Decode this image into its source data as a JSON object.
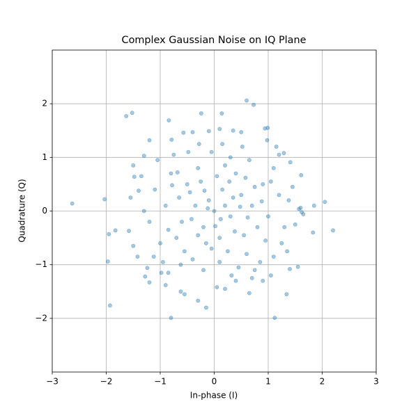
{
  "chart_data": {
    "type": "scatter",
    "title": "Complex Gaussian Noise on IQ Plane",
    "x_label": "In-phase (I)",
    "y_label": "Quadrature (Q)",
    "color": "#1f77b4",
    "grid": true,
    "xlim": [
      -3,
      3
    ],
    "ylim": [
      -3,
      3
    ],
    "xticks": [
      {
        "value": -3,
        "label": "−3"
      },
      {
        "value": -2,
        "label": "−2"
      },
      {
        "value": -1,
        "label": "−1"
      },
      0,
      1,
      2,
      3
    ],
    "yticks": [
      {
        "value": -2,
        "label": "−2"
      },
      {
        "value": -1,
        "label": "−1"
      },
      0,
      1,
      2
    ],
    "x": [
      -2.63,
      -2.03,
      -1.95,
      -1.97,
      -1.93,
      -1.83,
      -1.63,
      -1.52,
      2.2,
      2.05,
      1.85,
      1.83,
      1.12,
      -0.8,
      0.6,
      0.73,
      0.14,
      -0.24,
      -0.84,
      1.61,
      1.55,
      1.34,
      1.4,
      1.6,
      1.62,
      1.57,
      1.65,
      1.5,
      1.45,
      1.41,
      1.29,
      1.2,
      0.99,
      0.94,
      0.98,
      0.5,
      0.35,
      0.1,
      -0.1,
      -0.4,
      -0.57,
      -0.79,
      -1.2,
      -1.3,
      -1.5,
      -1.48,
      -1.55,
      -1.4,
      -1.58,
      -1.5,
      -1.42,
      -1.28,
      -1.2,
      -1.24,
      -0.98,
      -0.9,
      -0.62,
      -0.55,
      -0.3,
      -0.15,
      0.05,
      0.2,
      0.4,
      0.65,
      0.7,
      0.9,
      1.05,
      1.1,
      1.25,
      1.3,
      0.2,
      0.3,
      -0.1,
      -0.2,
      0.1,
      0.5,
      -0.5,
      0.4,
      -0.7,
      0.8,
      -0.3,
      0.6,
      -0.9,
      0.9,
      -0.4,
      0.0,
      0.15,
      -0.35,
      0.25,
      -0.6,
      0.7,
      -0.8,
      1.0,
      -1.0,
      0.3,
      -0.2,
      0.55,
      -0.45,
      1.1,
      -1.1,
      0.05,
      -0.15,
      0.35,
      -0.75,
      0.85,
      -0.25,
      0.65,
      -0.95,
      0.45,
      -0.55,
      1.2,
      -1.2,
      0.1,
      -0.05,
      0.75,
      -0.65,
      0.95,
      -0.85,
      0.2,
      -0.3,
      0.12,
      -0.12,
      0.28,
      -0.42,
      0.58,
      -0.68,
      0.38,
      -0.18,
      0.02,
      0.48,
      -1.35,
      1.35,
      -0.05,
      0.15,
      -1.05,
      1.15,
      -0.85,
      0.75,
      -1.3,
      1.38,
      0.62,
      -0.62,
      0.88,
      -0.28,
      0.32,
      -0.78,
      1.05,
      -1.12,
      0.52,
      -0.48
    ],
    "values": [
      0.14,
      0.22,
      -0.43,
      -0.94,
      -1.76,
      -0.36,
      1.77,
      1.83,
      -0.36,
      0.17,
      0.1,
      -0.4,
      -1.99,
      -1.99,
      2.06,
      1.98,
      1.82,
      1.82,
      1.69,
      0.67,
      -1.04,
      -1.55,
      -1.08,
      0.06,
      -0.02,
      0.04,
      -0.06,
      -0.25,
      0.45,
      0.91,
      1.08,
      1.05,
      1.55,
      1.54,
      1.32,
      1.47,
      1.5,
      1.53,
      1.49,
      1.47,
      1.46,
      1.33,
      1.32,
      1.03,
      0.85,
      0.64,
      0.25,
      0.38,
      -0.37,
      -0.65,
      -0.85,
      -1.22,
      -1.33,
      -1.06,
      -1.15,
      -1.38,
      -1.5,
      -1.55,
      -1.67,
      -1.8,
      -1.42,
      -1.45,
      -1.3,
      -1.53,
      -1.25,
      -1.3,
      -1.2,
      -0.85,
      -0.6,
      -0.3,
      0.1,
      -0.1,
      0.2,
      -0.3,
      -0.5,
      0.3,
      0.5,
      0.7,
      -0.5,
      -0.3,
      0.8,
      -0.8,
      0.1,
      0.5,
      -0.9,
      0.0,
      0.4,
      0.1,
      -0.75,
      -0.2,
      0.1,
      0.7,
      -0.1,
      -0.6,
      1.0,
      -1.1,
      -0.45,
      0.35,
      0.8,
      0.4,
      0.65,
      -0.6,
      0.25,
      1.05,
      -0.95,
      0.55,
      0.95,
      -0.95,
      -1.05,
      -0.75,
      0.3,
      -0.2,
      -0.95,
      1.1,
      0.45,
      0.25,
      -0.55,
      -0.35,
      0.85,
      -0.45,
      -0.15,
      0.05,
      0.55,
      -0.15,
      0.62,
      0.72,
      -0.38,
      0.38,
      -0.28,
      0.08,
      0.65,
      -0.75,
      -0.7,
      1.25,
      0.95,
      1.2,
      -1.15,
      -1.1,
      0.0,
      0.2,
      -0.12,
      -1.0,
      0.18,
      1.25,
      -1.2,
      0.48,
      0.55,
      -0.85,
      1.2,
      1.1
    ]
  }
}
